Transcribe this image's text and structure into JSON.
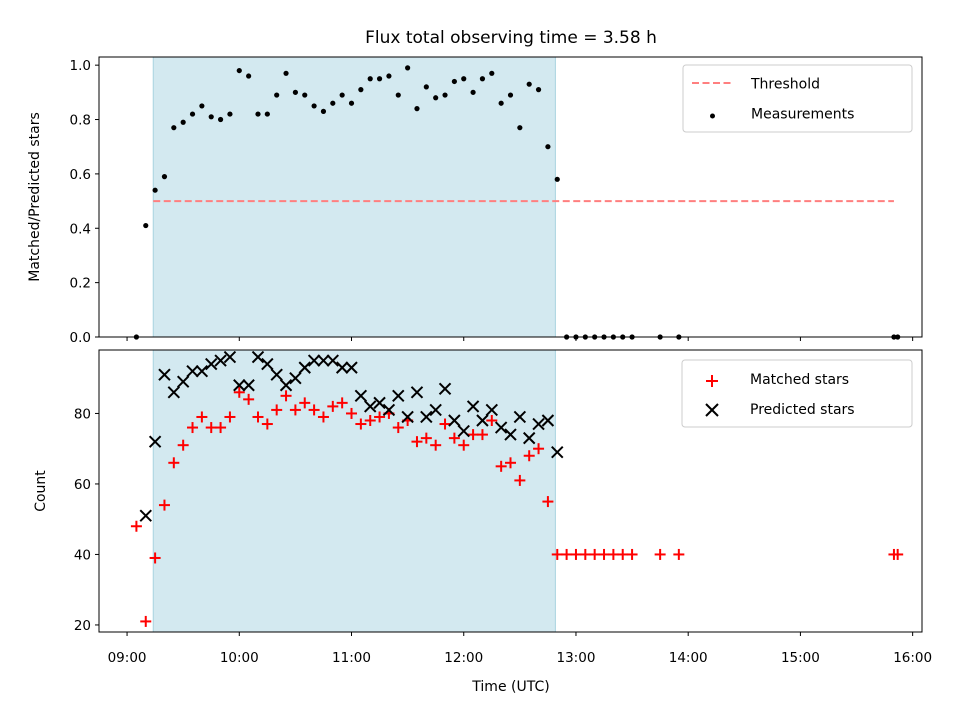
{
  "chart_data": [
    {
      "type": "scatter",
      "title": "Flux total observing time = 3.58 h",
      "xlabel": "",
      "ylabel": "Matched/Predicted stars",
      "ylim": [
        0,
        1.03
      ],
      "yticks": [
        "0.0",
        "0.2",
        "0.4",
        "0.6",
        "0.8",
        "1.0"
      ],
      "ytick_values": [
        0,
        0.2,
        0.4,
        0.6,
        0.8,
        1.0
      ],
      "legend_position": "top-right",
      "shaded_interval": [
        "09:14",
        "12:49"
      ],
      "shade_color": "#d3e9f0",
      "threshold": {
        "name": "Threshold",
        "y": 0.5,
        "x_range": [
          "09:14",
          "15:50"
        ],
        "color": "#ff7f7f"
      },
      "series": [
        {
          "name": "Measurements",
          "color": "#000000",
          "marker": "dot",
          "points": [
            [
              "09:05",
              0.0
            ],
            [
              "09:10",
              0.41
            ],
            [
              "09:15",
              0.54
            ],
            [
              "09:20",
              0.59
            ],
            [
              "09:25",
              0.77
            ],
            [
              "09:30",
              0.79
            ],
            [
              "09:35",
              0.82
            ],
            [
              "09:40",
              0.85
            ],
            [
              "09:45",
              0.81
            ],
            [
              "09:50",
              0.8
            ],
            [
              "09:55",
              0.82
            ],
            [
              "10:00",
              0.98
            ],
            [
              "10:05",
              0.96
            ],
            [
              "10:10",
              0.82
            ],
            [
              "10:15",
              0.82
            ],
            [
              "10:20",
              0.89
            ],
            [
              "10:25",
              0.97
            ],
            [
              "10:30",
              0.9
            ],
            [
              "10:35",
              0.89
            ],
            [
              "10:40",
              0.85
            ],
            [
              "10:45",
              0.83
            ],
            [
              "10:50",
              0.86
            ],
            [
              "10:55",
              0.89
            ],
            [
              "11:00",
              0.86
            ],
            [
              "11:05",
              0.91
            ],
            [
              "11:10",
              0.95
            ],
            [
              "11:15",
              0.95
            ],
            [
              "11:20",
              0.96
            ],
            [
              "11:25",
              0.89
            ],
            [
              "11:30",
              0.99
            ],
            [
              "11:35",
              0.84
            ],
            [
              "11:40",
              0.92
            ],
            [
              "11:45",
              0.88
            ],
            [
              "11:50",
              0.89
            ],
            [
              "11:55",
              0.94
            ],
            [
              "12:00",
              0.95
            ],
            [
              "12:05",
              0.9
            ],
            [
              "12:10",
              0.95
            ],
            [
              "12:15",
              0.97
            ],
            [
              "12:20",
              0.86
            ],
            [
              "12:25",
              0.89
            ],
            [
              "12:30",
              0.77
            ],
            [
              "12:35",
              0.93
            ],
            [
              "12:40",
              0.91
            ],
            [
              "12:45",
              0.7
            ],
            [
              "12:50",
              0.58
            ],
            [
              "12:55",
              0.0
            ],
            [
              "13:00",
              0.0
            ],
            [
              "13:05",
              0.0
            ],
            [
              "13:10",
              0.0
            ],
            [
              "13:15",
              0.0
            ],
            [
              "13:20",
              0.0
            ],
            [
              "13:25",
              0.0
            ],
            [
              "13:30",
              0.0
            ],
            [
              "13:45",
              0.0
            ],
            [
              "13:55",
              0.0
            ],
            [
              "15:50",
              0.0
            ],
            [
              "15:52",
              0.0
            ]
          ]
        }
      ]
    },
    {
      "type": "scatter",
      "title": "",
      "xlabel": "Time (UTC)",
      "ylabel": "Count",
      "ylim": [
        18,
        98
      ],
      "yticks": [
        "20",
        "40",
        "60",
        "80"
      ],
      "ytick_values": [
        20,
        40,
        60,
        80
      ],
      "xticks": [
        "09:00",
        "10:00",
        "11:00",
        "12:00",
        "13:00",
        "14:00",
        "15:00",
        "16:00"
      ],
      "xlim": [
        "08:45",
        "16:05"
      ],
      "legend_position": "top-right",
      "shaded_interval": [
        "09:14",
        "12:49"
      ],
      "shade_color": "#d3e9f0",
      "series": [
        {
          "name": "Matched stars",
          "color": "#ff0000",
          "marker": "plus",
          "points": [
            [
              "09:05",
              48
            ],
            [
              "09:10",
              21
            ],
            [
              "09:15",
              39
            ],
            [
              "09:20",
              54
            ],
            [
              "09:25",
              66
            ],
            [
              "09:30",
              71
            ],
            [
              "09:35",
              76
            ],
            [
              "09:40",
              79
            ],
            [
              "09:45",
              76
            ],
            [
              "09:50",
              76
            ],
            [
              "09:55",
              79
            ],
            [
              "10:00",
              86
            ],
            [
              "10:05",
              84
            ],
            [
              "10:10",
              79
            ],
            [
              "10:15",
              77
            ],
            [
              "10:20",
              81
            ],
            [
              "10:25",
              85
            ],
            [
              "10:30",
              81
            ],
            [
              "10:35",
              83
            ],
            [
              "10:40",
              81
            ],
            [
              "10:45",
              79
            ],
            [
              "10:50",
              82
            ],
            [
              "10:55",
              83
            ],
            [
              "11:00",
              80
            ],
            [
              "11:05",
              77
            ],
            [
              "11:10",
              78
            ],
            [
              "11:15",
              79
            ],
            [
              "11:20",
              80
            ],
            [
              "11:25",
              76
            ],
            [
              "11:30",
              78
            ],
            [
              "11:35",
              72
            ],
            [
              "11:40",
              73
            ],
            [
              "11:45",
              71
            ],
            [
              "11:50",
              77
            ],
            [
              "11:55",
              73
            ],
            [
              "12:00",
              71
            ],
            [
              "12:05",
              74
            ],
            [
              "12:10",
              74
            ],
            [
              "12:15",
              78
            ],
            [
              "12:20",
              65
            ],
            [
              "12:25",
              66
            ],
            [
              "12:30",
              61
            ],
            [
              "12:35",
              68
            ],
            [
              "12:40",
              70
            ],
            [
              "12:45",
              55
            ],
            [
              "12:50",
              40
            ],
            [
              "12:55",
              40
            ],
            [
              "13:00",
              40
            ],
            [
              "13:05",
              40
            ],
            [
              "13:10",
              40
            ],
            [
              "13:15",
              40
            ],
            [
              "13:20",
              40
            ],
            [
              "13:25",
              40
            ],
            [
              "13:30",
              40
            ],
            [
              "13:45",
              40
            ],
            [
              "13:55",
              40
            ],
            [
              "15:50",
              40
            ],
            [
              "15:52",
              40
            ]
          ]
        },
        {
          "name": "Predicted stars",
          "color": "#000000",
          "marker": "x",
          "points": [
            [
              "09:10",
              51
            ],
            [
              "09:15",
              72
            ],
            [
              "09:20",
              91
            ],
            [
              "09:25",
              86
            ],
            [
              "09:30",
              89
            ],
            [
              "09:35",
              92
            ],
            [
              "09:40",
              92
            ],
            [
              "09:45",
              94
            ],
            [
              "09:50",
              95
            ],
            [
              "09:55",
              96
            ],
            [
              "10:00",
              88
            ],
            [
              "10:05",
              88
            ],
            [
              "10:10",
              96
            ],
            [
              "10:15",
              94
            ],
            [
              "10:20",
              91
            ],
            [
              "10:25",
              88
            ],
            [
              "10:30",
              90
            ],
            [
              "10:35",
              93
            ],
            [
              "10:40",
              95
            ],
            [
              "10:45",
              95
            ],
            [
              "10:50",
              95
            ],
            [
              "10:55",
              93
            ],
            [
              "11:00",
              93
            ],
            [
              "11:05",
              85
            ],
            [
              "11:10",
              82
            ],
            [
              "11:15",
              83
            ],
            [
              "11:20",
              81
            ],
            [
              "11:25",
              85
            ],
            [
              "11:30",
              79
            ],
            [
              "11:35",
              86
            ],
            [
              "11:40",
              79
            ],
            [
              "11:45",
              81
            ],
            [
              "11:50",
              87
            ],
            [
              "11:55",
              78
            ],
            [
              "12:00",
              75
            ],
            [
              "12:05",
              82
            ],
            [
              "12:10",
              78
            ],
            [
              "12:15",
              81
            ],
            [
              "12:20",
              76
            ],
            [
              "12:25",
              74
            ],
            [
              "12:30",
              79
            ],
            [
              "12:35",
              73
            ],
            [
              "12:40",
              77
            ],
            [
              "12:45",
              78
            ],
            [
              "12:50",
              69
            ]
          ]
        }
      ]
    }
  ]
}
